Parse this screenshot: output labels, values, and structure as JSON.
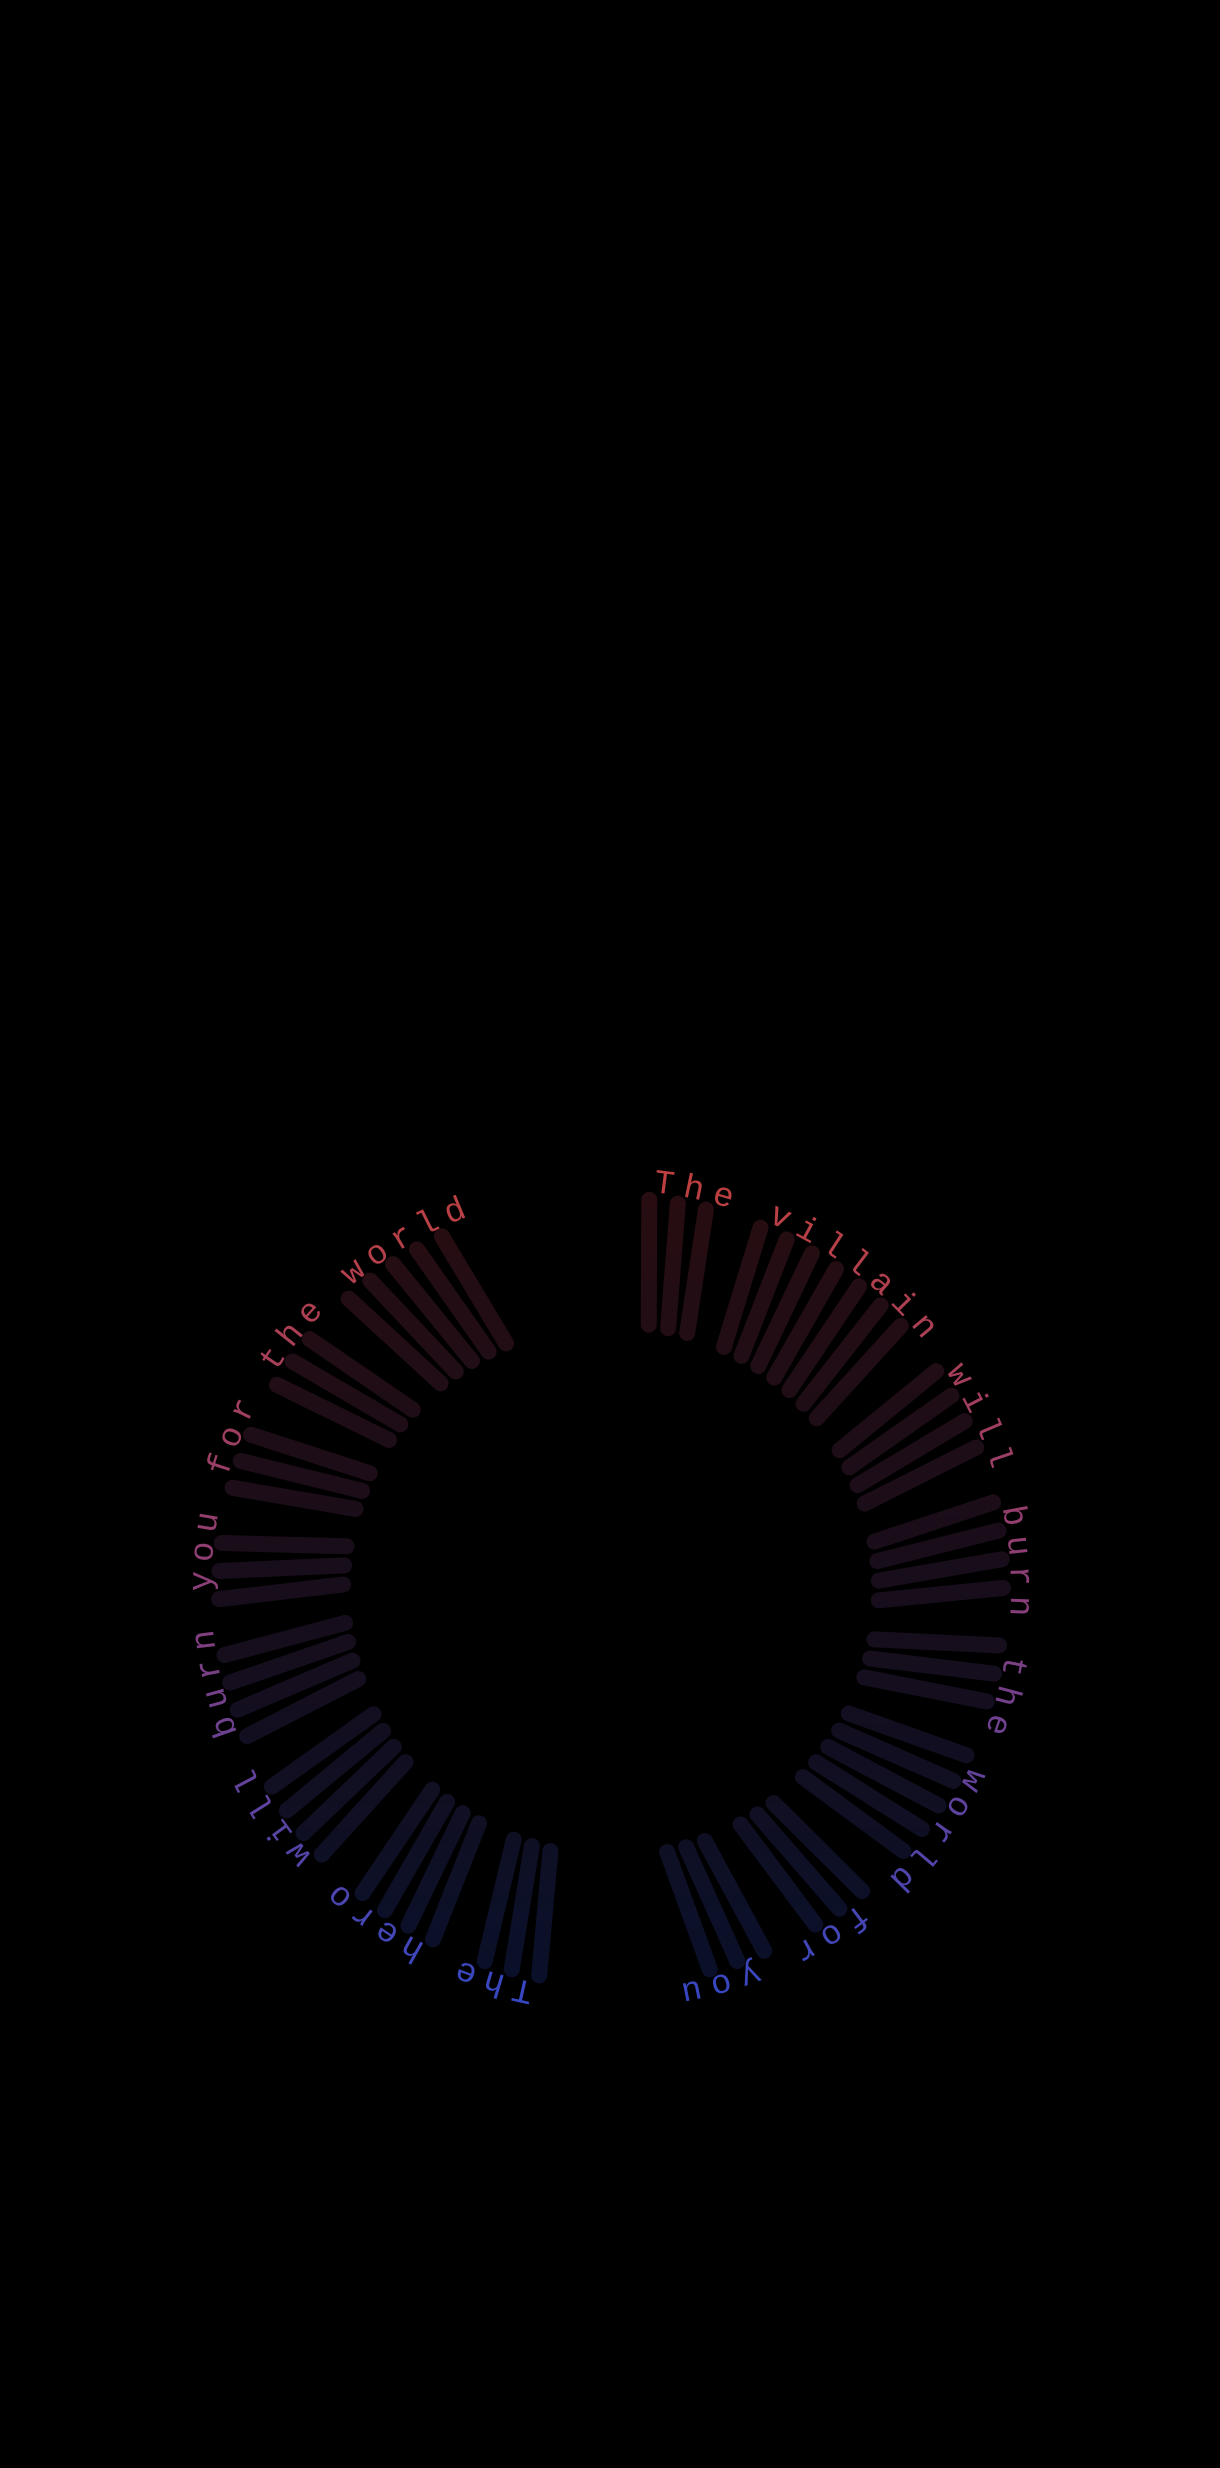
{
  "texts": [
    "The villain will burn the world for you",
    "The hero will burn you for the world"
  ]
}
